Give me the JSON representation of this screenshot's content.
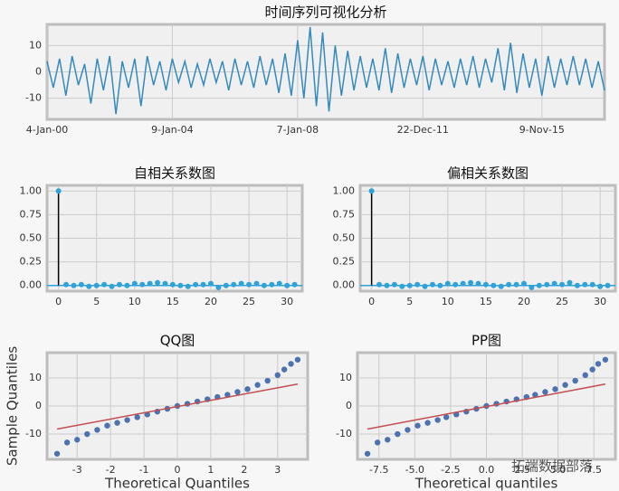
{
  "chart_data": [
    {
      "type": "line",
      "title": "时间序列可视化分析",
      "color": "#348abd",
      "grid": true,
      "values": [
        4,
        -6,
        5,
        -9,
        6,
        -5,
        3,
        -12,
        5,
        -7,
        6,
        -16,
        4,
        -6,
        5,
        -13,
        6,
        -5,
        4,
        -7,
        5,
        -4,
        4,
        -6,
        3,
        -5,
        5,
        -4,
        4,
        -7,
        5,
        -5,
        4,
        -6,
        6,
        -5,
        5,
        -8,
        7,
        -9,
        12,
        -10,
        17,
        -13,
        15,
        -15,
        10,
        -9,
        8,
        -7,
        6,
        -6,
        5,
        -7,
        9,
        -8,
        7,
        -6,
        5,
        -5,
        6,
        -7,
        5,
        -5,
        4,
        -6,
        5,
        -5,
        6,
        -6,
        5,
        -4,
        9,
        -7,
        11,
        -8,
        7,
        -6,
        5,
        -9,
        6,
        -6,
        5,
        -5,
        6,
        -5,
        5,
        -6,
        4,
        -7
      ],
      "xlim": [
        0,
        89
      ],
      "xticks": [
        {
          "value": 0,
          "label": "4-Jan-00"
        },
        {
          "value": 20,
          "label": "9-Jan-04"
        },
        {
          "value": 40,
          "label": "7-Jan-08"
        },
        {
          "value": 60,
          "label": "22-Dec-11"
        },
        {
          "value": 79,
          "label": "9-Nov-15"
        }
      ],
      "ylim": [
        -18,
        18
      ],
      "yticks": [
        -10,
        0,
        10
      ]
    },
    {
      "type": "stem",
      "title": "自相关系数图",
      "color": "#30a2da",
      "grid": true,
      "x": [
        0,
        1,
        2,
        3,
        4,
        5,
        6,
        7,
        8,
        9,
        10,
        11,
        12,
        13,
        14,
        15,
        16,
        17,
        18,
        19,
        20,
        21,
        22,
        23,
        24,
        25,
        26,
        27,
        28,
        29,
        30,
        31
      ],
      "values": [
        1,
        0.01,
        0,
        0.01,
        -0.01,
        0,
        0.01,
        -0.01,
        0.01,
        0,
        0.02,
        0.01,
        0.02,
        0.03,
        0.02,
        0.01,
        0,
        -0.01,
        0.01,
        0.01,
        0.02,
        -0.02,
        0,
        0.01,
        0.02,
        0.01,
        0.02,
        0,
        0.01,
        0.02,
        0,
        0.01
      ],
      "xlim": [
        -1.5,
        32
      ],
      "xticks": [
        0,
        5,
        10,
        15,
        20,
        25,
        30
      ],
      "ylim": [
        -0.06,
        1.06
      ],
      "yticks": [
        {
          "value": 0,
          "label": "0.00"
        },
        {
          "value": 0.25,
          "label": "0.25"
        },
        {
          "value": 0.5,
          "label": "0.50"
        },
        {
          "value": 0.75,
          "label": "0.75"
        },
        {
          "value": 1,
          "label": "1.00"
        }
      ]
    },
    {
      "type": "stem",
      "title": "偏相关系数图",
      "color": "#30a2da",
      "grid": true,
      "x": [
        0,
        1,
        2,
        3,
        4,
        5,
        6,
        7,
        8,
        9,
        10,
        11,
        12,
        13,
        14,
        15,
        16,
        17,
        18,
        19,
        20,
        21,
        22,
        23,
        24,
        25,
        26,
        27,
        28,
        29,
        30,
        31
      ],
      "values": [
        1,
        0.01,
        0,
        0.01,
        -0.01,
        0,
        0.01,
        -0.01,
        0.01,
        0,
        0.02,
        0.01,
        0.02,
        0.03,
        0.02,
        0.01,
        0,
        -0.01,
        0.01,
        0.01,
        0.02,
        -0.02,
        0,
        0.01,
        0.02,
        0.01,
        0.03,
        0,
        0.01,
        0.01,
        -0.01,
        0
      ],
      "xlim": [
        -1.5,
        32
      ],
      "xticks": [
        0,
        5,
        10,
        15,
        20,
        25,
        30
      ],
      "ylim": [
        -0.06,
        1.06
      ],
      "yticks": [
        {
          "value": 0,
          "label": "0.00"
        },
        {
          "value": 0.25,
          "label": "0.25"
        },
        {
          "value": 0.5,
          "label": "0.50"
        },
        {
          "value": 0.75,
          "label": "0.75"
        },
        {
          "value": 1,
          "label": "1.00"
        }
      ]
    },
    {
      "type": "scatter",
      "title": "QQ图",
      "xlabel": "Theoretical Quantiles",
      "ylabel": "Sample Quantiles",
      "grid": true,
      "series": [
        {
          "mode": "markers",
          "color": "#4c72b0",
          "x": [
            -3.6,
            -3.3,
            -3.0,
            -2.7,
            -2.4,
            -2.1,
            -1.8,
            -1.5,
            -1.2,
            -0.9,
            -0.6,
            -0.3,
            0,
            0.3,
            0.6,
            0.9,
            1.2,
            1.5,
            1.8,
            2.1,
            2.4,
            2.7,
            3.0,
            3.2,
            3.4,
            3.6
          ],
          "values": [
            -17,
            -13,
            -12,
            -10,
            -8.5,
            -7,
            -6,
            -5,
            -4,
            -3,
            -2,
            -1,
            0,
            0.8,
            1.6,
            2.4,
            3.2,
            4,
            5,
            6,
            7.5,
            9,
            11,
            13,
            15,
            16.5
          ]
        },
        {
          "mode": "line",
          "color": "#c44e52",
          "x": [
            -3.6,
            3.6
          ],
          "values": [
            -8.2,
            7.8
          ]
        }
      ],
      "xlim": [
        -3.9,
        3.9
      ],
      "xticks": [
        -3,
        -2,
        -1,
        0,
        1,
        2,
        3
      ],
      "ylim": [
        -19,
        19
      ],
      "yticks": [
        -10,
        0,
        10
      ]
    },
    {
      "type": "scatter",
      "title": "PP图",
      "xlabel": "Theoretical quantiles",
      "watermark": "拓端数据部落",
      "grid": true,
      "series": [
        {
          "mode": "markers",
          "color": "#4c72b0",
          "x": [
            -8.3,
            -7.6,
            -6.9,
            -6.2,
            -5.5,
            -4.8,
            -4.1,
            -3.4,
            -2.8,
            -2.1,
            -1.4,
            -0.7,
            0,
            0.7,
            1.4,
            2.1,
            2.8,
            3.4,
            4.1,
            4.8,
            5.5,
            6.2,
            6.9,
            7.4,
            7.8,
            8.3
          ],
          "values": [
            -17,
            -13,
            -12,
            -10,
            -8.5,
            -7,
            -6,
            -5,
            -4,
            -3,
            -2,
            -1,
            0,
            0.8,
            1.6,
            2.4,
            3.2,
            4,
            5,
            6,
            7.5,
            9,
            11,
            13,
            15,
            16.5
          ]
        },
        {
          "mode": "line",
          "color": "#c44e52",
          "x": [
            -8.3,
            8.3
          ],
          "values": [
            -8.2,
            7.8
          ]
        }
      ],
      "xlim": [
        -9,
        9
      ],
      "xticks": [
        {
          "value": -7.5,
          "label": "-7.5"
        },
        {
          "value": -5,
          "label": "-5.0"
        },
        {
          "value": -2.5,
          "label": "-2.5"
        },
        {
          "value": 0,
          "label": "0.0"
        },
        {
          "value": 2.5,
          "label": "2.5"
        },
        {
          "value": 5,
          "label": "5.0"
        },
        {
          "value": 7.5,
          "label": "7.5"
        }
      ],
      "ylim": [
        -19,
        19
      ],
      "yticks": [
        -10,
        0,
        10
      ]
    }
  ]
}
